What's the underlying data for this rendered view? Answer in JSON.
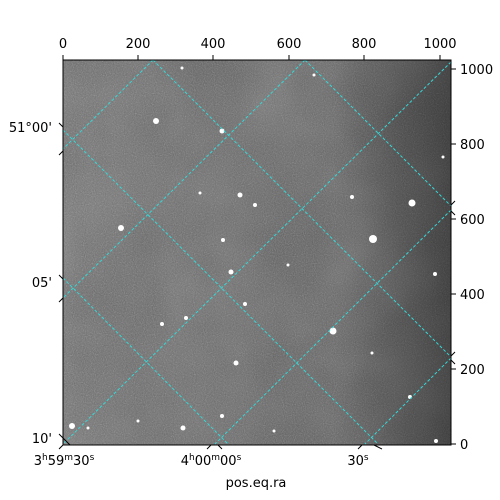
{
  "plot": {
    "image_kind": "grayscale astronomical sky image (noisy, nebulous background)",
    "grid_color": "#38d6d6",
    "frame_color": "#000000",
    "pixel_range": [
      0,
      1000
    ]
  },
  "top_axis": {
    "ticks": [
      "0",
      "200",
      "400",
      "600",
      "800",
      "1000"
    ]
  },
  "right_axis": {
    "ticks": [
      "0",
      "200",
      "400",
      "600",
      "800",
      "1000"
    ]
  },
  "left_axis": {
    "ticks": [
      "51°00'",
      "05'",
      "10'"
    ]
  },
  "bottom_axis": {
    "ticks": [
      {
        "main": "3",
        "sup1": "h",
        "mid": "59",
        "sup2": "m",
        "sec": "30",
        "sup3": "s"
      },
      {
        "main": "4",
        "sup1": "h",
        "mid": "00",
        "sup2": "m",
        "sec": "00",
        "sup3": "s"
      },
      {
        "main": "30",
        "sup1": "s",
        "mid": "",
        "sup2": "",
        "sec": "",
        "sup3": ""
      }
    ],
    "title": "pos.eq.ra"
  }
}
